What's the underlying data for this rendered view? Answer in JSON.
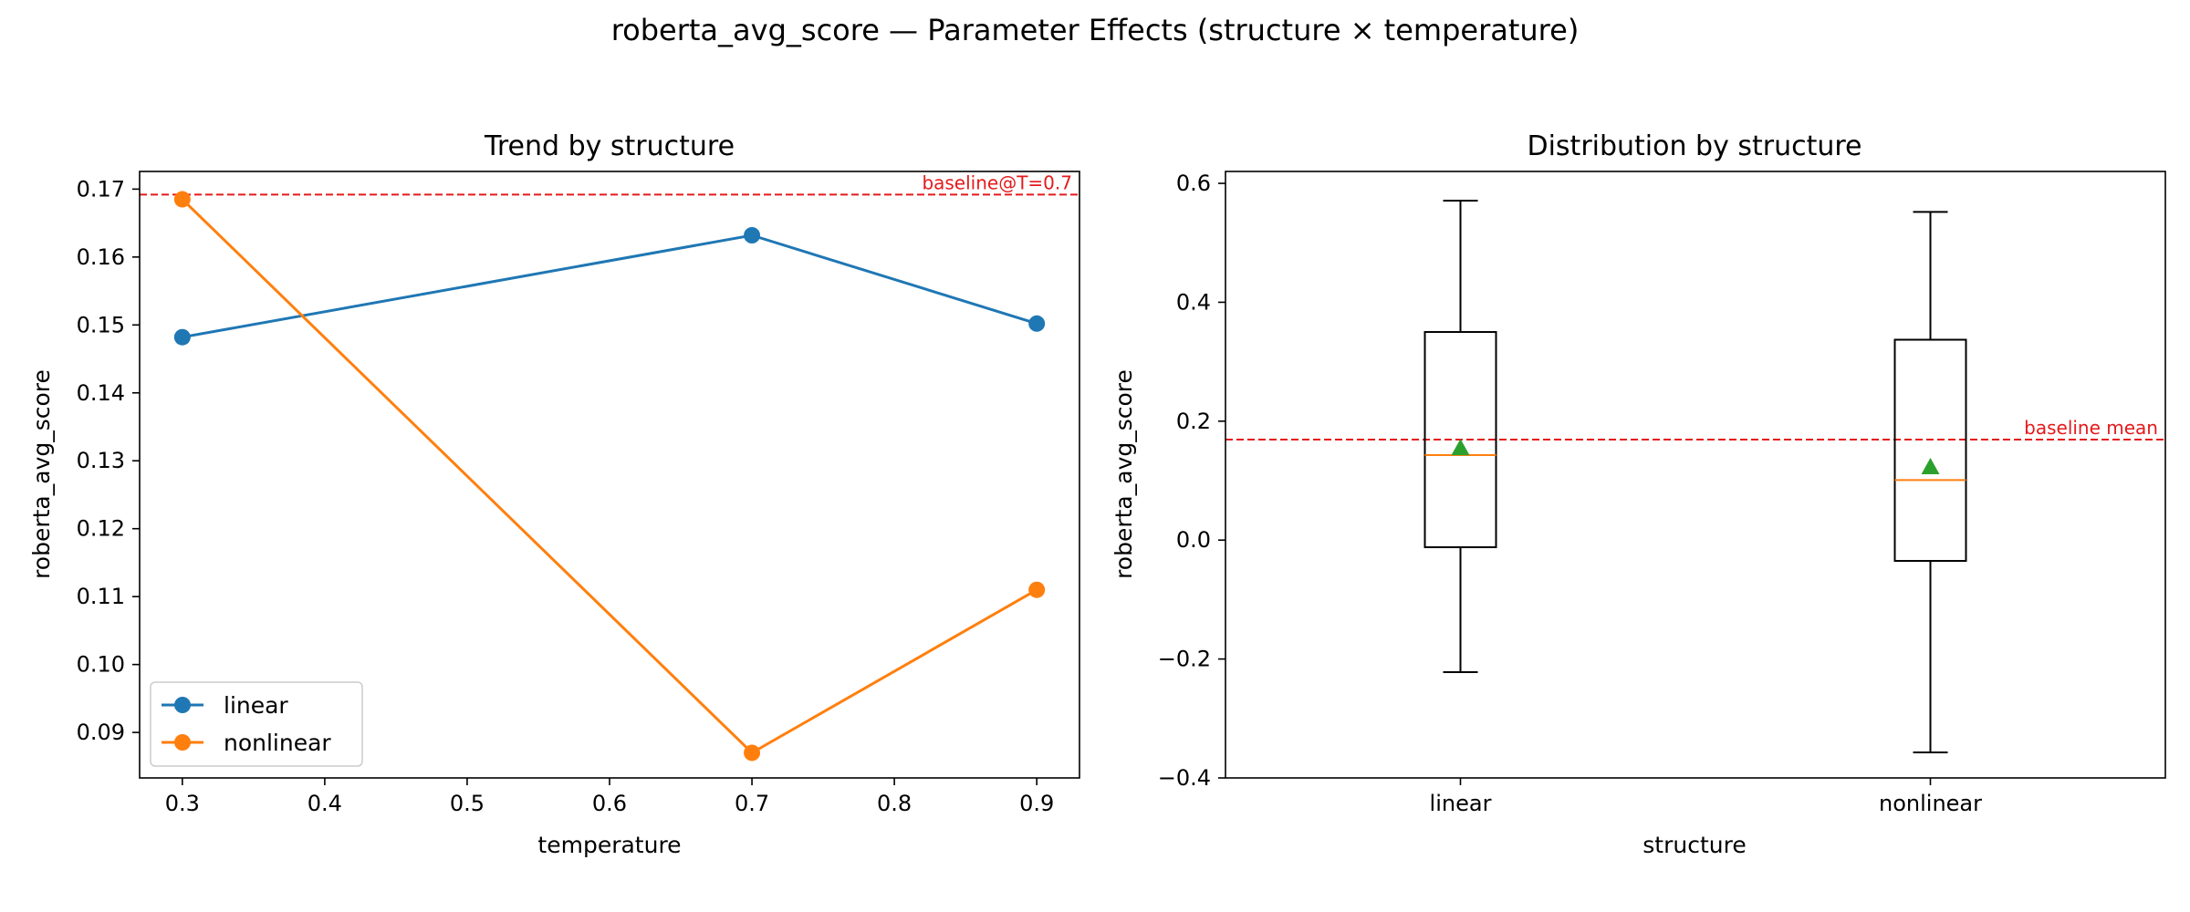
{
  "figure": {
    "suptitle": "roberta_avg_score — Parameter Effects (structure × temperature)"
  },
  "chart_data": [
    {
      "type": "line",
      "title": "Trend by structure",
      "xlabel": "temperature",
      "ylabel": "roberta_avg_score",
      "xlim": [
        0.27,
        0.93
      ],
      "ylim": [
        0.0833,
        0.1726
      ],
      "xticks": [
        0.3,
        0.4,
        0.5,
        0.6,
        0.7,
        0.8,
        0.9
      ],
      "yticks": [
        0.09,
        0.1,
        0.11,
        0.12,
        0.13,
        0.14,
        0.15,
        0.16,
        0.17
      ],
      "x": [
        0.3,
        0.7,
        0.9
      ],
      "series": [
        {
          "name": "linear",
          "color": "#1f77b4",
          "values": [
            0.1482,
            0.1632,
            0.1502
          ]
        },
        {
          "name": "nonlinear",
          "color": "#ff7f0e",
          "values": [
            0.1685,
            0.087,
            0.111
          ]
        }
      ],
      "baseline": {
        "value": 0.1692,
        "label": "baseline@T=0.7",
        "color": "#e41a1c"
      },
      "legend": "lower-left",
      "grid": false
    },
    {
      "type": "box",
      "title": "Distribution by structure",
      "xlabel": "structure",
      "ylabel": "roberta_avg_score",
      "ylim": [
        -0.4,
        0.62
      ],
      "yticks": [
        -0.4,
        -0.2,
        0.0,
        0.2,
        0.4,
        0.6
      ],
      "categories": [
        "linear",
        "nonlinear"
      ],
      "boxes": [
        {
          "whisker_low": -0.222,
          "q1": -0.012,
          "median": 0.143,
          "q3": 0.35,
          "whisker_high": 0.571,
          "mean": 0.155
        },
        {
          "whisker_low": -0.357,
          "q1": -0.035,
          "median": 0.101,
          "q3": 0.337,
          "whisker_high": 0.552,
          "mean": 0.123
        }
      ],
      "baseline": {
        "value": 0.169,
        "label": "baseline mean",
        "color": "#e41a1c"
      },
      "median_color": "#ff7f0e",
      "mean_color": "#2ca02c",
      "grid": false
    }
  ]
}
